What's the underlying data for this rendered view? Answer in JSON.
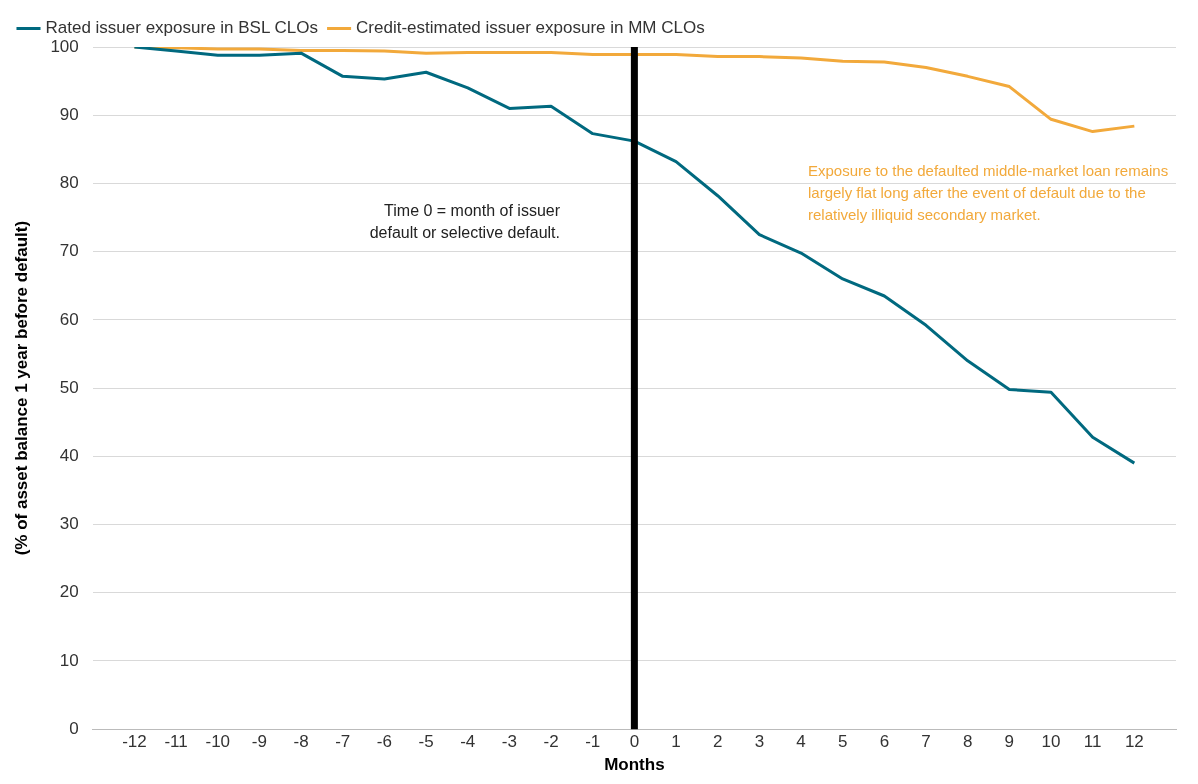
{
  "chart_data": {
    "type": "line",
    "xlabel": "Months",
    "ylabel": "(% of asset balance 1 year before default)",
    "x": [
      -12,
      -11,
      -10,
      -9,
      -8,
      -7,
      -6,
      -5,
      -4,
      -3,
      -2,
      -1,
      0,
      1,
      2,
      3,
      4,
      5,
      6,
      7,
      8,
      9,
      10,
      11,
      12
    ],
    "series": [
      {
        "name": "Rated issuer exposure in BSL CLOs",
        "color": "#00697f",
        "values": [
          100,
          99.4,
          98.8,
          98.8,
          99.1,
          95.7,
          95.3,
          96.3,
          94,
          91,
          91.3,
          87.3,
          86.2,
          83.2,
          78.2,
          72.5,
          69.8,
          66,
          63.5,
          59.2,
          54,
          49.8,
          49.4,
          42.8,
          39
        ]
      },
      {
        "name": "Credit-estimated issuer exposure in MM CLOs",
        "color": "#f2a93b",
        "values": [
          100,
          99.9,
          99.7,
          99.7,
          99.5,
          99.5,
          99.4,
          99.1,
          99.2,
          99.2,
          99.2,
          98.9,
          98.9,
          98.9,
          98.6,
          98.6,
          98.4,
          97.9,
          97.8,
          97,
          95.7,
          94.2,
          89.4,
          87.6,
          88.4
        ]
      }
    ],
    "xlim": [
      -13,
      13
    ],
    "xticks": [
      -12,
      -11,
      -10,
      -9,
      -8,
      -7,
      -6,
      -5,
      -4,
      -3,
      -2,
      -1,
      0,
      1,
      2,
      3,
      4,
      5,
      6,
      7,
      8,
      9,
      10,
      11,
      12
    ],
    "ylim": [
      0,
      100
    ],
    "yticks": [
      0,
      10,
      20,
      30,
      40,
      50,
      60,
      70,
      80,
      90,
      100
    ],
    "grid": "y",
    "legend": "top left",
    "marker": "none",
    "line_style": "solid",
    "ref_lines": [
      {
        "axis": "x",
        "value": 0,
        "color": "#000000"
      }
    ],
    "annotations": [
      "Time 0 = month of issuer default or selective default.",
      "Exposure to the defaulted middle-market loan remains largely flat long after the event of default due to the relatively illiquid secondary market."
    ]
  }
}
